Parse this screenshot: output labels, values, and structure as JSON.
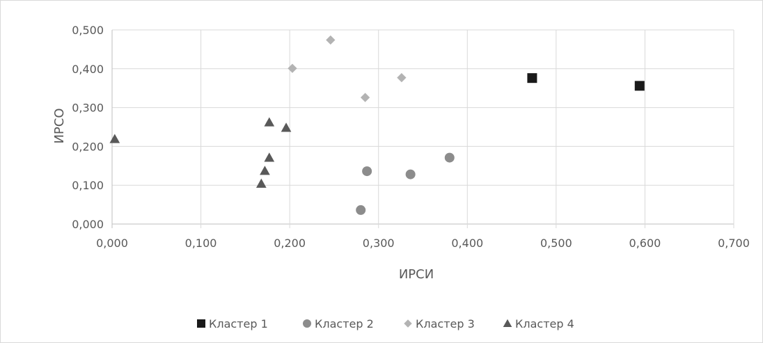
{
  "chart_data": {
    "type": "scatter",
    "xlabel": "ИРСИ",
    "ylabel": "ИРСО",
    "xlim": [
      0,
      0.7
    ],
    "ylim": [
      0,
      0.5
    ],
    "x_ticks": [
      "0,000",
      "0,100",
      "0,200",
      "0,300",
      "0,400",
      "0,500",
      "0,600",
      "0,700"
    ],
    "y_ticks": [
      "0,000",
      "0,100",
      "0,200",
      "0,300",
      "0,400",
      "0,500"
    ],
    "grid": true,
    "legend_position": "bottom",
    "series": [
      {
        "name": "Кластер 1",
        "marker": "square",
        "color": "#1a1a1a",
        "points": [
          [
            0.473,
            0.376
          ],
          [
            0.594,
            0.356
          ]
        ]
      },
      {
        "name": "Кластер 2",
        "marker": "circle",
        "color": "#8c8c8c",
        "points": [
          [
            0.28,
            0.036
          ],
          [
            0.287,
            0.136
          ],
          [
            0.336,
            0.128
          ],
          [
            0.38,
            0.171
          ]
        ]
      },
      {
        "name": "Кластер 3",
        "marker": "diamond",
        "color": "#b3b3b3",
        "points": [
          [
            0.246,
            0.474
          ],
          [
            0.203,
            0.401
          ],
          [
            0.326,
            0.377
          ],
          [
            0.285,
            0.326
          ]
        ]
      },
      {
        "name": "Кластер 4",
        "marker": "triangle",
        "color": "#595959",
        "points": [
          [
            0.003,
            0.219
          ],
          [
            0.177,
            0.262
          ],
          [
            0.196,
            0.248
          ],
          [
            0.177,
            0.171
          ],
          [
            0.172,
            0.137
          ],
          [
            0.168,
            0.104
          ]
        ]
      }
    ]
  }
}
